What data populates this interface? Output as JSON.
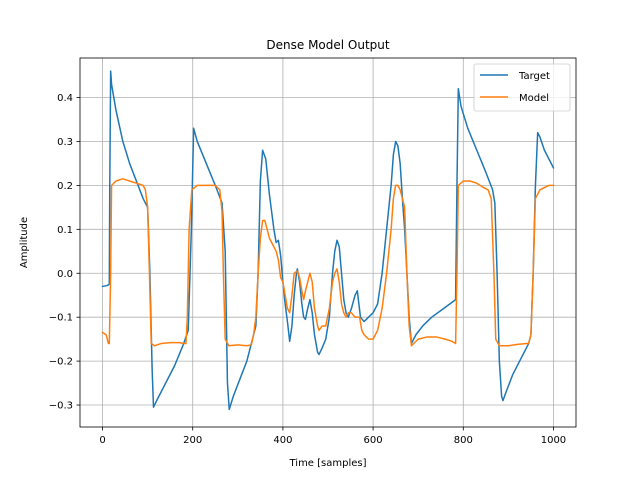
{
  "chart_data": {
    "type": "line",
    "title": "Dense Model Output",
    "xlabel": "Time [samples]",
    "ylabel": "Amplitude",
    "xlim": [
      -50,
      1050
    ],
    "ylim": [
      -0.35,
      0.49
    ],
    "xticks": [
      0,
      200,
      400,
      600,
      800,
      1000
    ],
    "yticks": [
      -0.3,
      -0.2,
      -0.1,
      0.0,
      0.1,
      0.2,
      0.3,
      0.4
    ],
    "xtick_labels": [
      "0",
      "200",
      "400",
      "600",
      "800",
      "1000"
    ],
    "ytick_labels": [
      "−0.3",
      "−0.2",
      "−0.1",
      "0.0",
      "0.1",
      "0.2",
      "0.3",
      "0.4"
    ],
    "grid": true,
    "legend_position": "top-right",
    "series": [
      {
        "name": "Target",
        "color": "#1f77b4",
        "points": [
          [
            0,
            -0.03
          ],
          [
            10,
            -0.028
          ],
          [
            15,
            -0.025
          ],
          [
            16,
            0.2
          ],
          [
            18,
            0.46
          ],
          [
            20,
            0.43
          ],
          [
            30,
            0.37
          ],
          [
            45,
            0.3
          ],
          [
            60,
            0.25
          ],
          [
            75,
            0.21
          ],
          [
            90,
            0.17
          ],
          [
            100,
            0.15
          ],
          [
            105,
            0.0
          ],
          [
            110,
            -0.22
          ],
          [
            113,
            -0.305
          ],
          [
            120,
            -0.29
          ],
          [
            140,
            -0.25
          ],
          [
            160,
            -0.21
          ],
          [
            180,
            -0.16
          ],
          [
            190,
            -0.13
          ],
          [
            197,
            0.1
          ],
          [
            202,
            0.33
          ],
          [
            210,
            0.3
          ],
          [
            230,
            0.25
          ],
          [
            250,
            0.2
          ],
          [
            265,
            0.16
          ],
          [
            272,
            0.05
          ],
          [
            277,
            -0.25
          ],
          [
            281,
            -0.31
          ],
          [
            290,
            -0.28
          ],
          [
            305,
            -0.24
          ],
          [
            320,
            -0.2
          ],
          [
            330,
            -0.16
          ],
          [
            340,
            -0.12
          ],
          [
            345,
            0.0
          ],
          [
            350,
            0.21
          ],
          [
            355,
            0.28
          ],
          [
            362,
            0.26
          ],
          [
            370,
            0.18
          ],
          [
            380,
            0.1
          ],
          [
            385,
            0.07
          ],
          [
            390,
            0.075
          ],
          [
            395,
            0.04
          ],
          [
            400,
            -0.02
          ],
          [
            405,
            -0.07
          ],
          [
            410,
            -0.11
          ],
          [
            415,
            -0.155
          ],
          [
            420,
            -0.12
          ],
          [
            425,
            -0.05
          ],
          [
            430,
            0.0
          ],
          [
            432,
            0.01
          ],
          [
            437,
            -0.02
          ],
          [
            442,
            -0.07
          ],
          [
            446,
            -0.1
          ],
          [
            450,
            -0.105
          ],
          [
            455,
            -0.08
          ],
          [
            460,
            -0.06
          ],
          [
            465,
            -0.09
          ],
          [
            470,
            -0.14
          ],
          [
            477,
            -0.18
          ],
          [
            480,
            -0.185
          ],
          [
            487,
            -0.17
          ],
          [
            495,
            -0.15
          ],
          [
            503,
            -0.1
          ],
          [
            510,
            0.0
          ],
          [
            515,
            0.05
          ],
          [
            520,
            0.075
          ],
          [
            525,
            0.06
          ],
          [
            530,
            0.0
          ],
          [
            535,
            -0.06
          ],
          [
            540,
            -0.09
          ],
          [
            545,
            -0.1
          ],
          [
            552,
            -0.08
          ],
          [
            560,
            -0.05
          ],
          [
            565,
            -0.04
          ],
          [
            572,
            -0.1
          ],
          [
            580,
            -0.11
          ],
          [
            590,
            -0.1
          ],
          [
            600,
            -0.09
          ],
          [
            610,
            -0.07
          ],
          [
            620,
            0.0
          ],
          [
            630,
            0.1
          ],
          [
            640,
            0.2
          ],
          [
            645,
            0.27
          ],
          [
            650,
            0.3
          ],
          [
            655,
            0.29
          ],
          [
            660,
            0.25
          ],
          [
            665,
            0.17
          ],
          [
            670,
            0.1
          ],
          [
            675,
            0.0
          ],
          [
            680,
            -0.1
          ],
          [
            685,
            -0.16
          ],
          [
            695,
            -0.14
          ],
          [
            710,
            -0.12
          ],
          [
            730,
            -0.1
          ],
          [
            750,
            -0.085
          ],
          [
            770,
            -0.07
          ],
          [
            783,
            -0.06
          ],
          [
            786,
            0.2
          ],
          [
            789,
            0.42
          ],
          [
            795,
            0.38
          ],
          [
            810,
            0.33
          ],
          [
            830,
            0.28
          ],
          [
            850,
            0.23
          ],
          [
            865,
            0.19
          ],
          [
            870,
            0.16
          ],
          [
            875,
            0.0
          ],
          [
            880,
            -0.2
          ],
          [
            885,
            -0.28
          ],
          [
            888,
            -0.29
          ],
          [
            895,
            -0.27
          ],
          [
            910,
            -0.23
          ],
          [
            930,
            -0.19
          ],
          [
            945,
            -0.16
          ],
          [
            950,
            -0.14
          ],
          [
            955,
            0.0
          ],
          [
            960,
            0.2
          ],
          [
            965,
            0.32
          ],
          [
            970,
            0.31
          ],
          [
            980,
            0.28
          ],
          [
            990,
            0.26
          ],
          [
            1000,
            0.24
          ]
        ]
      },
      {
        "name": "Model",
        "color": "#ff7f0e",
        "points": [
          [
            0,
            -0.135
          ],
          [
            8,
            -0.14
          ],
          [
            13,
            -0.16
          ],
          [
            15,
            -0.16
          ],
          [
            18,
            0.0
          ],
          [
            20,
            0.2
          ],
          [
            30,
            0.21
          ],
          [
            45,
            0.215
          ],
          [
            60,
            0.21
          ],
          [
            75,
            0.205
          ],
          [
            90,
            0.2
          ],
          [
            95,
            0.19
          ],
          [
            100,
            0.15
          ],
          [
            104,
            0.0
          ],
          [
            108,
            -0.16
          ],
          [
            115,
            -0.165
          ],
          [
            130,
            -0.16
          ],
          [
            150,
            -0.158
          ],
          [
            170,
            -0.158
          ],
          [
            180,
            -0.16
          ],
          [
            185,
            -0.16
          ],
          [
            188,
            -0.1
          ],
          [
            192,
            0.1
          ],
          [
            198,
            0.19
          ],
          [
            210,
            0.2
          ],
          [
            230,
            0.2
          ],
          [
            250,
            0.2
          ],
          [
            260,
            0.19
          ],
          [
            265,
            0.14
          ],
          [
            268,
            0.0
          ],
          [
            272,
            -0.15
          ],
          [
            280,
            -0.165
          ],
          [
            300,
            -0.163
          ],
          [
            320,
            -0.165
          ],
          [
            330,
            -0.163
          ],
          [
            335,
            -0.14
          ],
          [
            340,
            -0.1
          ],
          [
            345,
            0.0
          ],
          [
            350,
            0.08
          ],
          [
            355,
            0.12
          ],
          [
            360,
            0.12
          ],
          [
            365,
            0.1
          ],
          [
            370,
            0.08
          ],
          [
            380,
            0.06
          ],
          [
            385,
            0.05
          ],
          [
            390,
            0.03
          ],
          [
            395,
            -0.01
          ],
          [
            400,
            -0.02
          ],
          [
            405,
            -0.05
          ],
          [
            410,
            -0.08
          ],
          [
            415,
            -0.09
          ],
          [
            420,
            -0.05
          ],
          [
            425,
            0.0
          ],
          [
            432,
            0.005
          ],
          [
            437,
            -0.01
          ],
          [
            442,
            -0.04
          ],
          [
            446,
            -0.06
          ],
          [
            450,
            -0.04
          ],
          [
            455,
            -0.02
          ],
          [
            460,
            0.0
          ],
          [
            465,
            -0.02
          ],
          [
            470,
            -0.08
          ],
          [
            477,
            -0.12
          ],
          [
            480,
            -0.13
          ],
          [
            487,
            -0.12
          ],
          [
            495,
            -0.12
          ],
          [
            503,
            -0.08
          ],
          [
            510,
            -0.02
          ],
          [
            515,
            0.0
          ],
          [
            520,
            0.01
          ],
          [
            525,
            -0.02
          ],
          [
            530,
            -0.07
          ],
          [
            535,
            -0.09
          ],
          [
            540,
            -0.1
          ],
          [
            545,
            -0.09
          ],
          [
            552,
            -0.09
          ],
          [
            560,
            -0.1
          ],
          [
            570,
            -0.1
          ],
          [
            575,
            -0.13
          ],
          [
            580,
            -0.14
          ],
          [
            590,
            -0.15
          ],
          [
            600,
            -0.15
          ],
          [
            610,
            -0.13
          ],
          [
            620,
            -0.08
          ],
          [
            630,
            0.0
          ],
          [
            640,
            0.1
          ],
          [
            645,
            0.17
          ],
          [
            650,
            0.2
          ],
          [
            655,
            0.2
          ],
          [
            660,
            0.19
          ],
          [
            665,
            0.17
          ],
          [
            670,
            0.15
          ],
          [
            675,
            0.0
          ],
          [
            680,
            -0.12
          ],
          [
            685,
            -0.165
          ],
          [
            700,
            -0.15
          ],
          [
            720,
            -0.145
          ],
          [
            740,
            -0.145
          ],
          [
            760,
            -0.15
          ],
          [
            775,
            -0.155
          ],
          [
            783,
            -0.16
          ],
          [
            786,
            0.0
          ],
          [
            789,
            0.2
          ],
          [
            800,
            0.21
          ],
          [
            815,
            0.21
          ],
          [
            830,
            0.205
          ],
          [
            845,
            0.195
          ],
          [
            855,
            0.19
          ],
          [
            862,
            0.17
          ],
          [
            868,
            0.0
          ],
          [
            872,
            -0.15
          ],
          [
            880,
            -0.165
          ],
          [
            900,
            -0.165
          ],
          [
            920,
            -0.162
          ],
          [
            940,
            -0.16
          ],
          [
            945,
            -0.16
          ],
          [
            950,
            -0.14
          ],
          [
            955,
            0.0
          ],
          [
            960,
            0.17
          ],
          [
            970,
            0.19
          ],
          [
            980,
            0.195
          ],
          [
            990,
            0.2
          ],
          [
            1000,
            0.2
          ]
        ]
      }
    ]
  }
}
